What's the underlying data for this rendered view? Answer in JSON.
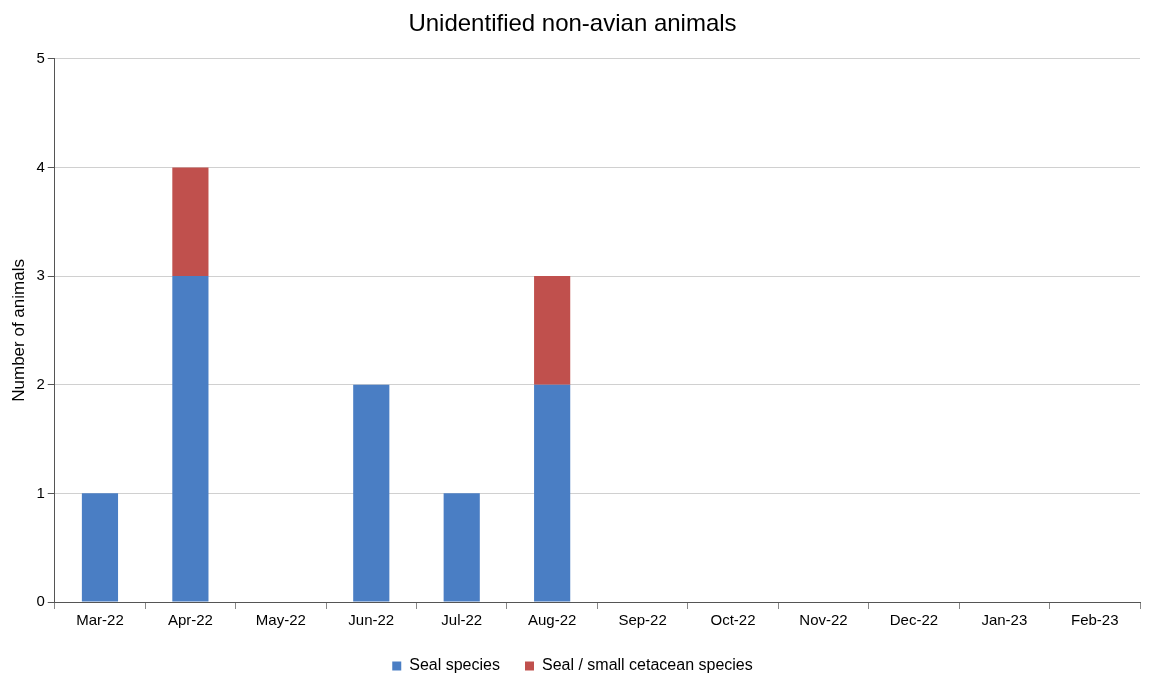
{
  "chart_data": {
    "type": "bar",
    "title": "Unidentified non-avian animals",
    "ylabel": "Number of animals",
    "categories": [
      "Mar-22",
      "Apr-22",
      "May-22",
      "Jun-22",
      "Jul-22",
      "Aug-22",
      "Sep-22",
      "Oct-22",
      "Nov-22",
      "Dec-22",
      "Jan-23",
      "Feb-23"
    ],
    "series": [
      {
        "name": "Seal species",
        "color": "#4a7ec4",
        "values": [
          1,
          3,
          0,
          2,
          1,
          2,
          0,
          0,
          0,
          0,
          0,
          0
        ]
      },
      {
        "name": "Seal / small cetacean species",
        "color": "#c0504d",
        "values": [
          0,
          1,
          0,
          0,
          0,
          1,
          0,
          0,
          0,
          0,
          0,
          0
        ]
      }
    ],
    "stacked": true,
    "ylim": [
      0,
      5
    ],
    "yticks": [
      0,
      1,
      2,
      3,
      4,
      5
    ],
    "grid": "y",
    "legend": "bottom"
  }
}
